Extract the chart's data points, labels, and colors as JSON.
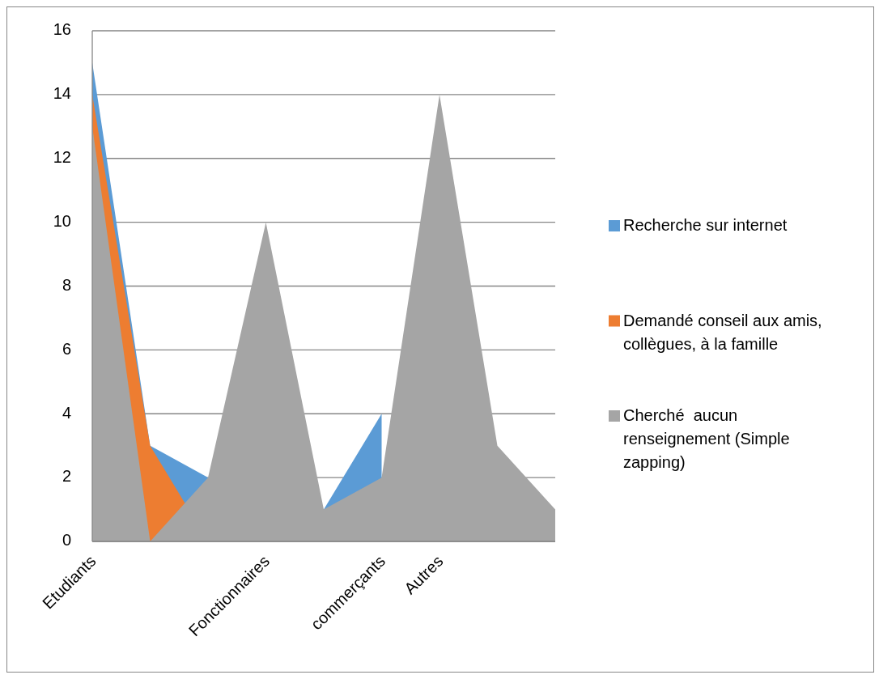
{
  "chart_data": {
    "type": "area",
    "categories": [
      "Etudiants",
      null,
      null,
      "Fonctionnaires",
      null,
      "commerçants",
      "Autres",
      null,
      null
    ],
    "series": [
      {
        "name": "Recherche sur internet",
        "color": "#5b9bd5",
        "values": [
          15,
          3,
          2,
          null,
          1,
          4,
          null,
          null,
          null
        ]
      },
      {
        "name": "Demandé conseil aux amis, collègues, à la famille",
        "color": "#ed7d31",
        "values": [
          14,
          3,
          0,
          null,
          null,
          null,
          null,
          null,
          null
        ]
      },
      {
        "name": "Cherché  aucun renseignement (Simple zapping)",
        "color": "#a5a5a5",
        "values": [
          13,
          0,
          2,
          10,
          1,
          2,
          14,
          3,
          1
        ]
      }
    ],
    "ylim": [
      0,
      16
    ],
    "yticks": [
      0,
      2,
      4,
      6,
      8,
      10,
      12,
      14,
      16
    ],
    "grid": "y",
    "legend": "right"
  }
}
